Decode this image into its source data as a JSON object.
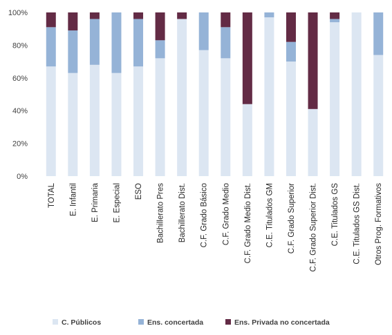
{
  "chart_data": {
    "type": "bar",
    "stacked": true,
    "percent": true,
    "categories": [
      "TOTAL",
      "E. Infantil",
      "E. Primaria",
      "E. Especial",
      "ESO",
      "Bachillerato Pres",
      "Bachillerato Dist.",
      "C.F. Grado Básico",
      "C.F. Grado Medio",
      "C.F. Grado Medio Dist.",
      "C.E. Titulados GM",
      "C.F. Grado Superior",
      "C.F. Grado Superior Dist.",
      "C.E. Titulados GS",
      "C.E. Titulados GS Dist.",
      "Otros Prog. Formativos"
    ],
    "series": [
      {
        "name": "C. Públicos",
        "color": "#dce6f2",
        "values": [
          67,
          63,
          68,
          63,
          67,
          72,
          96,
          77,
          72,
          44,
          97,
          70,
          41,
          94,
          100,
          74
        ]
      },
      {
        "name": "Ens. concertada",
        "color": "#95b3d7",
        "values": [
          24,
          26,
          28,
          37,
          29,
          11,
          0,
          23,
          19,
          0,
          3,
          12,
          0,
          2,
          0,
          26
        ]
      },
      {
        "name": "Ens. Privada no concertada",
        "color": "#632b45",
        "values": [
          9,
          11,
          4,
          0,
          4,
          17,
          4,
          0,
          9,
          56,
          0,
          18,
          59,
          4,
          0,
          0
        ]
      }
    ],
    "yticks": [
      "0%",
      "20%",
      "40%",
      "60%",
      "80%",
      "100%"
    ],
    "ylim": [
      0,
      100
    ],
    "grid": false,
    "legend": "bottom"
  }
}
